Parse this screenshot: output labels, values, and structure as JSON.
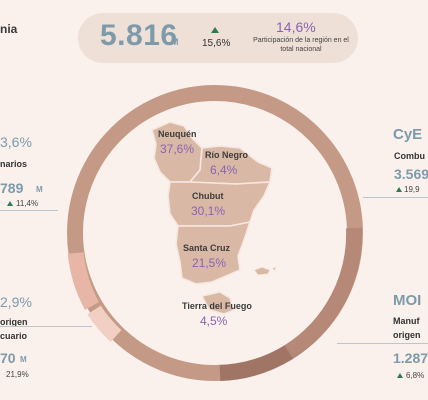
{
  "header": {
    "region_title": "nia",
    "total_value": "5.816",
    "total_unit": "M",
    "total_growth": "15,6%",
    "share_value": "14,6%",
    "share_label": "Participación de la región en el total nacional"
  },
  "provinces": [
    {
      "name": "Neuquén",
      "share": "37,6%"
    },
    {
      "name": "Río Negro",
      "share": "6,4%"
    },
    {
      "name": "Chubut",
      "share": "30,1%"
    },
    {
      "name": "Santa Cruz",
      "share": "21,5%"
    },
    {
      "name": "Tierra del Fuego",
      "share": "4,5%"
    }
  ],
  "left_panels": {
    "top": {
      "share": "3,6%",
      "label": "narios",
      "value": "789",
      "unit": "M",
      "growth": "11,4%"
    },
    "bottom": {
      "share": "2,9%",
      "label_line1": "origen",
      "label_line2": "cuario",
      "value": "70",
      "unit": "M",
      "growth": "21,9%"
    }
  },
  "right_panels": {
    "top": {
      "code": "CyE",
      "label": "Combu",
      "value": "3.569",
      "growth": "19,9"
    },
    "bottom": {
      "code": "MOI",
      "label_line1": "Manuf",
      "label_line2": "origen",
      "value": "1.287",
      "growth": "6,8%"
    }
  },
  "colors": {
    "background": "#faf1ec",
    "ring_main": "#c49a86",
    "ring_light": "#e7b6a6",
    "ring_lighter": "#f1cfc3",
    "ring_dark": "#a07565",
    "map_fill": "#d9b9a6",
    "value_blue": "#7d9aab",
    "percent_purple": "#8a63b0",
    "growth_green": "#2f7a4f"
  }
}
